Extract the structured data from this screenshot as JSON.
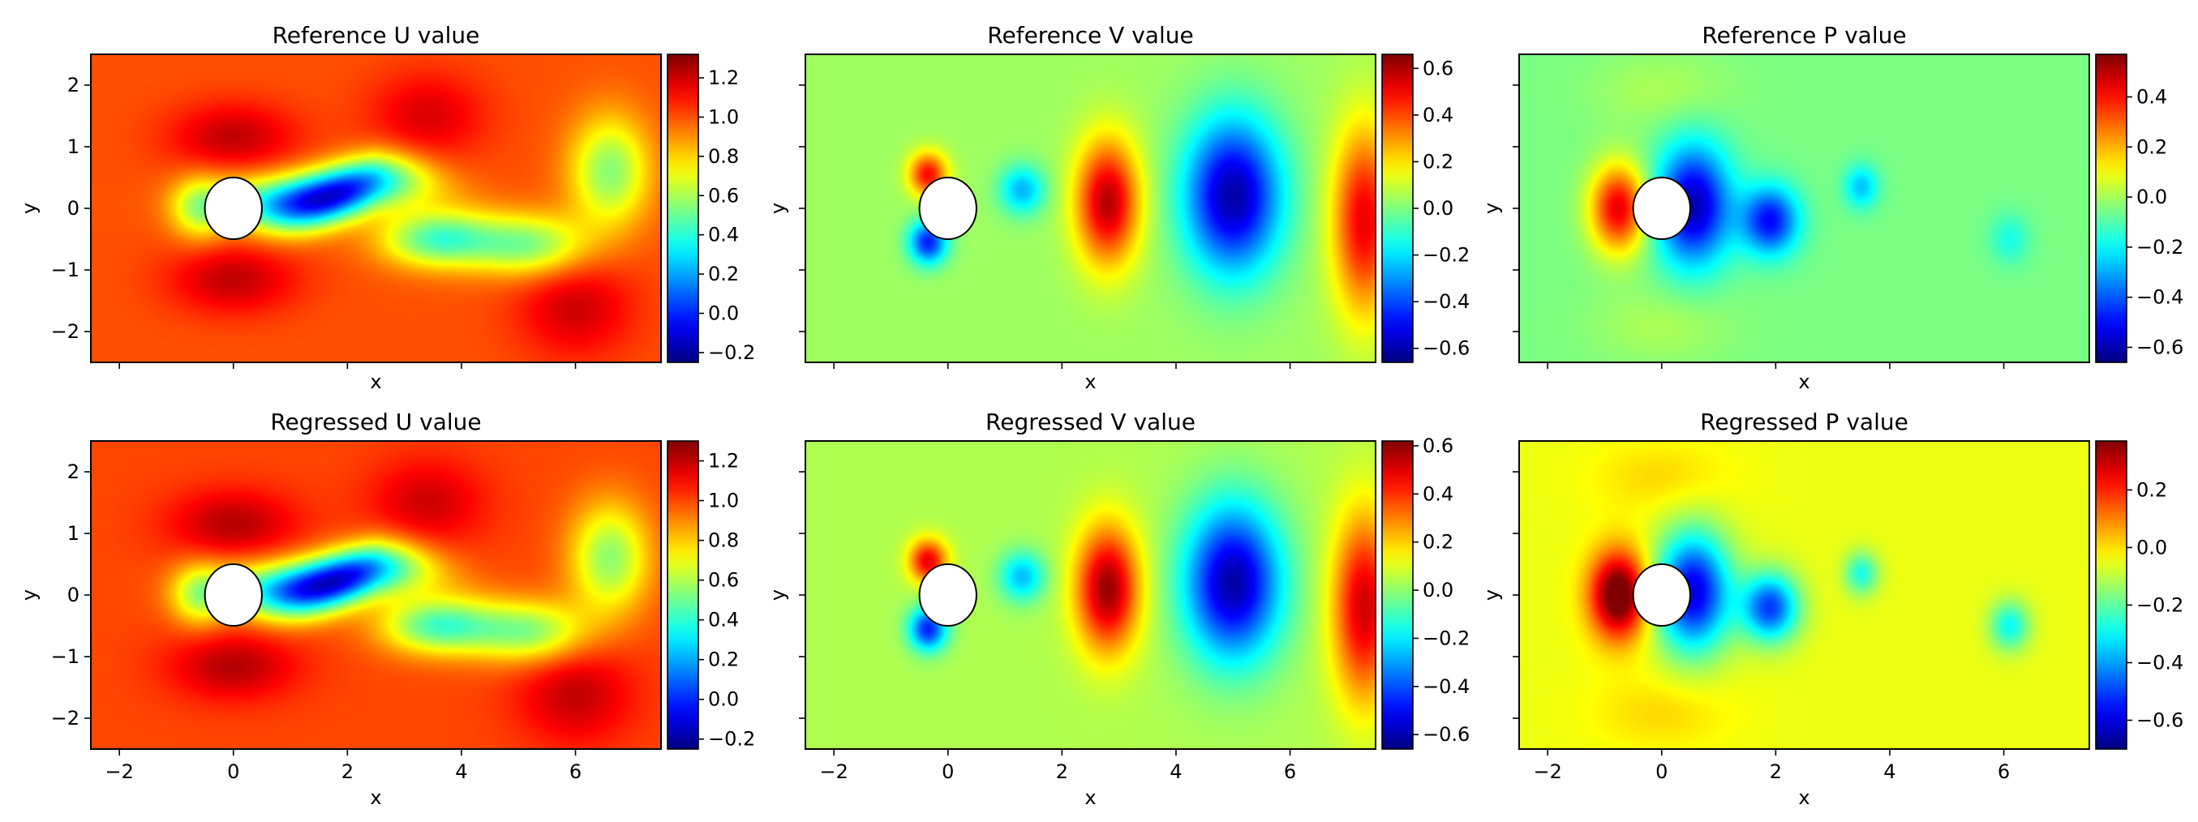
{
  "chart_data": [
    {
      "type": "heatmap",
      "title": "Reference U value",
      "xlabel": "x",
      "ylabel": "y",
      "field": "U",
      "x_ticks": [
        -2,
        0,
        2,
        4,
        6
      ],
      "y_ticks": [
        -2,
        -1,
        0,
        1,
        2
      ],
      "x_tick_labels_shown": false,
      "y_tick_labels_shown": true,
      "xlim": [
        -2.5,
        7.5
      ],
      "ylim": [
        -2.5,
        2.5
      ],
      "colormap": "jet",
      "color_range": [
        -0.25,
        1.32
      ],
      "colorbar_ticks": [
        "−0.2",
        "0.0",
        "0.2",
        "0.4",
        "0.6",
        "0.8",
        "1.0",
        "1.2"
      ],
      "cylinder": {
        "cx": 0,
        "cy": 0,
        "r": 0.5
      }
    },
    {
      "type": "heatmap",
      "title": "Reference V value",
      "xlabel": "x",
      "ylabel": "y",
      "field": "V",
      "x_ticks": [
        -2,
        0,
        2,
        4,
        6
      ],
      "y_ticks": [
        -2,
        -1,
        0,
        1,
        2
      ],
      "x_tick_labels_shown": false,
      "y_tick_labels_shown": false,
      "xlim": [
        -2.5,
        7.5
      ],
      "ylim": [
        -2.5,
        2.5
      ],
      "colormap": "jet",
      "color_range": [
        -0.66,
        0.66
      ],
      "colorbar_ticks": [
        "−0.6",
        "−0.4",
        "−0.2",
        "0.0",
        "0.2",
        "0.4",
        "0.6"
      ],
      "cylinder": {
        "cx": 0,
        "cy": 0,
        "r": 0.5
      }
    },
    {
      "type": "heatmap",
      "title": "Reference P value",
      "xlabel": "x",
      "ylabel": "y",
      "field": "P",
      "x_ticks": [
        -2,
        0,
        2,
        4,
        6
      ],
      "y_ticks": [
        -2,
        -1,
        0,
        1,
        2
      ],
      "x_tick_labels_shown": false,
      "y_tick_labels_shown": false,
      "xlim": [
        -2.5,
        7.5
      ],
      "ylim": [
        -2.5,
        2.5
      ],
      "colormap": "jet",
      "color_range": [
        -0.66,
        0.57
      ],
      "colorbar_ticks": [
        "−0.6",
        "−0.4",
        "−0.2",
        "0.0",
        "0.2",
        "0.4"
      ],
      "cylinder": {
        "cx": 0,
        "cy": 0,
        "r": 0.5
      }
    },
    {
      "type": "heatmap",
      "title": "Regressed U value",
      "xlabel": "x",
      "ylabel": "y",
      "field": "U",
      "x_ticks": [
        -2,
        0,
        2,
        4,
        6
      ],
      "y_ticks": [
        -2,
        -1,
        0,
        1,
        2
      ],
      "x_tick_labels": [
        "−2",
        "0",
        "2",
        "4",
        "6"
      ],
      "x_tick_labels_shown": true,
      "y_tick_labels_shown": true,
      "xlim": [
        -2.5,
        7.5
      ],
      "ylim": [
        -2.5,
        2.5
      ],
      "colormap": "jet",
      "color_range": [
        -0.25,
        1.3
      ],
      "colorbar_ticks": [
        "−0.2",
        "0.0",
        "0.2",
        "0.4",
        "0.6",
        "0.8",
        "1.0",
        "1.2"
      ],
      "cylinder": {
        "cx": 0,
        "cy": 0,
        "r": 0.5
      }
    },
    {
      "type": "heatmap",
      "title": "Regressed V value",
      "xlabel": "x",
      "ylabel": "y",
      "field": "V",
      "x_ticks": [
        -2,
        0,
        2,
        4,
        6
      ],
      "y_ticks": [
        -2,
        -1,
        0,
        1,
        2
      ],
      "x_tick_labels": [
        "−2",
        "0",
        "2",
        "4",
        "6"
      ],
      "x_tick_labels_shown": true,
      "y_tick_labels_shown": false,
      "xlim": [
        -2.5,
        7.5
      ],
      "ylim": [
        -2.5,
        2.5
      ],
      "colormap": "jet",
      "color_range": [
        -0.66,
        0.62
      ],
      "colorbar_ticks": [
        "−0.6",
        "−0.4",
        "−0.2",
        "0.0",
        "0.2",
        "0.4",
        "0.6"
      ],
      "cylinder": {
        "cx": 0,
        "cy": 0,
        "r": 0.5
      }
    },
    {
      "type": "heatmap",
      "title": "Regressed P value",
      "xlabel": "x",
      "ylabel": "y",
      "field": "P",
      "x_ticks": [
        -2,
        0,
        2,
        4,
        6
      ],
      "y_ticks": [
        -2,
        -1,
        0,
        1,
        2
      ],
      "x_tick_labels": [
        "−2",
        "0",
        "2",
        "4",
        "6"
      ],
      "x_tick_labels_shown": true,
      "y_tick_labels_shown": false,
      "xlim": [
        -2.5,
        7.5
      ],
      "ylim": [
        -2.5,
        2.5
      ],
      "colormap": "jet",
      "color_range": [
        -0.7,
        0.37
      ],
      "colorbar_ticks": [
        "−0.6",
        "−0.4",
        "−0.2",
        "0.0",
        "0.2"
      ],
      "cylinder": {
        "cx": 0,
        "cy": 0,
        "r": 0.5
      }
    }
  ]
}
